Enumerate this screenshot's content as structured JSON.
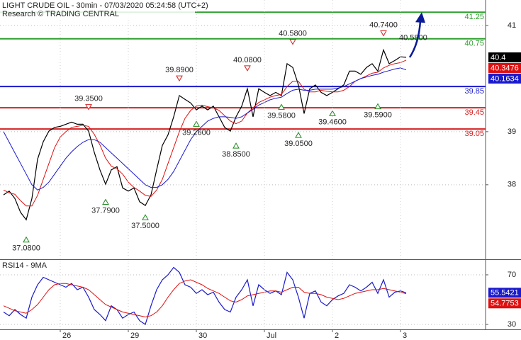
{
  "chart_data": [
    {
      "type": "line",
      "title": "LIGHT CRUDE OIL - 30min - 07/03/2020 05:24:58 (UTC+2)",
      "subtitle": "Research © TRADING CENTRAL",
      "ylim": [
        36.61,
        41.48
      ],
      "yticks": [
        38,
        39,
        41
      ],
      "grid": true,
      "series": [
        {
          "color": "#000000",
          "values": [
            37.81,
            37.88,
            37.74,
            37.48,
            37.34,
            37.74,
            38.48,
            38.81,
            39.01,
            39.08,
            39.1,
            39.14,
            39.18,
            39.14,
            39.14,
            39.01,
            38.61,
            38.28,
            38.01,
            38.28,
            38.34,
            37.94,
            37.88,
            37.94,
            37.68,
            37.61,
            37.81,
            38.28,
            38.74,
            38.94,
            39.28,
            39.68,
            39.61,
            39.54,
            39.41,
            39.48,
            39.41,
            39.48,
            39.28,
            39.08,
            39.01,
            39.28,
            39.48,
            39.81,
            39.28,
            39.81,
            39.74,
            39.68,
            39.74,
            39.68,
            40.28,
            40.21,
            39.88,
            39.34,
            39.81,
            39.88,
            39.74,
            39.68,
            39.74,
            39.81,
            39.88,
            40.14,
            40.14,
            40.08,
            40.21,
            40.28,
            40.14,
            40.54,
            40.28,
            40.34,
            40.41,
            40.4
          ]
        },
        {
          "color": "#e01010",
          "values": [
            37.9,
            37.85,
            37.82,
            37.7,
            37.6,
            37.6,
            37.8,
            38.1,
            38.4,
            38.7,
            38.9,
            39.0,
            39.08,
            39.1,
            39.12,
            39.1,
            38.95,
            38.75,
            38.5,
            38.35,
            38.3,
            38.2,
            38.05,
            37.95,
            37.88,
            37.8,
            37.78,
            37.9,
            38.1,
            38.4,
            38.7,
            39.0,
            39.25,
            39.4,
            39.48,
            39.5,
            39.47,
            39.45,
            39.4,
            39.3,
            39.2,
            39.15,
            39.2,
            39.35,
            39.45,
            39.55,
            39.6,
            39.65,
            39.68,
            39.7,
            39.85,
            39.95,
            39.95,
            39.8,
            39.75,
            39.75,
            39.78,
            39.76,
            39.75,
            39.75,
            39.78,
            39.85,
            39.95,
            40.0,
            40.05,
            40.1,
            40.12,
            40.2,
            40.25,
            40.28,
            40.3,
            40.3476
          ]
        },
        {
          "color": "#1a1acc",
          "values": [
            39.0,
            38.8,
            38.6,
            38.4,
            38.2,
            38.0,
            37.9,
            37.95,
            38.05,
            38.2,
            38.35,
            38.5,
            38.62,
            38.72,
            38.8,
            38.85,
            38.85,
            38.8,
            38.7,
            38.6,
            38.5,
            38.4,
            38.3,
            38.2,
            38.1,
            38.0,
            37.95,
            37.95,
            38.0,
            38.1,
            38.25,
            38.45,
            38.65,
            38.85,
            39.0,
            39.1,
            39.2,
            39.25,
            39.28,
            39.28,
            39.27,
            39.25,
            39.28,
            39.35,
            39.42,
            39.5,
            39.55,
            39.6,
            39.63,
            39.65,
            39.72,
            39.78,
            39.8,
            39.78,
            39.78,
            39.8,
            39.8,
            39.8,
            39.8,
            39.82,
            39.85,
            39.9,
            39.95,
            40.0,
            40.03,
            40.06,
            40.08,
            40.12,
            40.15,
            40.18,
            40.2,
            40.1634
          ]
        }
      ],
      "levels": [
        {
          "value": 41.25,
          "color": "#2e9e2e"
        },
        {
          "value": 40.75,
          "color": "#2e9e2e"
        },
        {
          "value": 39.85,
          "color": "#1a1acc"
        },
        {
          "value": 39.45,
          "color": "#d42020"
        },
        {
          "value": 39.05,
          "color": "#d42020"
        }
      ],
      "swing_highs": [
        {
          "x": 15,
          "value": 39.35,
          "label": "39.3500"
        },
        {
          "x": 31,
          "value": 39.89,
          "label": "39.8900"
        },
        {
          "x": 43,
          "value": 40.08,
          "label": "40.0800"
        },
        {
          "x": 51,
          "value": 40.58,
          "label": "40.5800"
        },
        {
          "x": 67,
          "value": 40.74,
          "label": "40.7400"
        }
      ],
      "swing_lows": [
        {
          "x": 4,
          "value": 37.08,
          "label": "37.0800"
        },
        {
          "x": 18,
          "value": 37.79,
          "label": "37.7900"
        },
        {
          "x": 25,
          "value": 37.5,
          "label": "37.5000"
        },
        {
          "x": 34,
          "value": 39.26,
          "label": "39.2600"
        },
        {
          "x": 41,
          "value": 38.85,
          "label": "38.8500"
        },
        {
          "x": 49,
          "value": 39.58,
          "label": "39.5800"
        },
        {
          "x": 52,
          "value": 39.05,
          "label": "39.0500"
        },
        {
          "x": 58,
          "value": 39.46,
          "label": "39.4600"
        },
        {
          "x": 66,
          "value": 39.59,
          "label": "39.5900"
        }
      ],
      "arrow_label": "40.5800"
    },
    {
      "type": "line",
      "title": "RSI14 - 9MA",
      "categories": [
        null,
        null,
        null,
        null,
        null,
        null,
        null,
        null,
        null,
        null,
        "26",
        null,
        null,
        null,
        null,
        null,
        null,
        null,
        null,
        null,
        null,
        null,
        "29",
        null,
        null,
        null,
        null,
        null,
        null,
        null,
        null,
        null,
        null,
        null,
        "30",
        null,
        null,
        null,
        null,
        null,
        null,
        null,
        null,
        null,
        null,
        null,
        "Jul",
        null,
        null,
        null,
        null,
        null,
        null,
        null,
        null,
        null,
        null,
        null,
        "2",
        null,
        null,
        null,
        null,
        null,
        null,
        null,
        null,
        null,
        null,
        null,
        "3",
        null
      ],
      "ylim": [
        26,
        81.4
      ],
      "yticks": [
        30,
        70
      ],
      "grid": true,
      "series": [
        {
          "color": "#1a1acc",
          "values": [
            40,
            37,
            42,
            38,
            35,
            52,
            62,
            68,
            66,
            64,
            62,
            60,
            63,
            58,
            60,
            52,
            42,
            38,
            33,
            45,
            42,
            35,
            38,
            40,
            33,
            30,
            45,
            58,
            66,
            70,
            76,
            72,
            62,
            60,
            55,
            58,
            54,
            56,
            48,
            42,
            40,
            52,
            58,
            66,
            45,
            62,
            58,
            55,
            57,
            54,
            72,
            66,
            52,
            35,
            55,
            57,
            48,
            45,
            50,
            53,
            55,
            62,
            60,
            57,
            60,
            64,
            55,
            66,
            52,
            56,
            57,
            55.5421
          ]
        },
        {
          "color": "#e01010",
          "values": [
            45,
            43,
            41,
            40,
            39,
            42,
            46,
            52,
            58,
            62,
            63,
            63,
            62,
            61,
            60,
            58,
            54,
            50,
            46,
            44,
            42,
            40,
            39,
            38,
            37,
            36,
            37,
            40,
            45,
            52,
            58,
            63,
            65,
            66,
            64,
            62,
            59,
            57,
            55,
            52,
            49,
            48,
            50,
            53,
            54,
            55,
            56,
            57,
            57,
            56,
            58,
            60,
            60,
            56,
            55,
            55,
            54,
            52,
            51,
            50,
            51,
            53,
            55,
            56,
            57,
            58,
            58,
            59,
            58,
            57,
            56,
            54.7753
          ]
        }
      ]
    }
  ]
}
